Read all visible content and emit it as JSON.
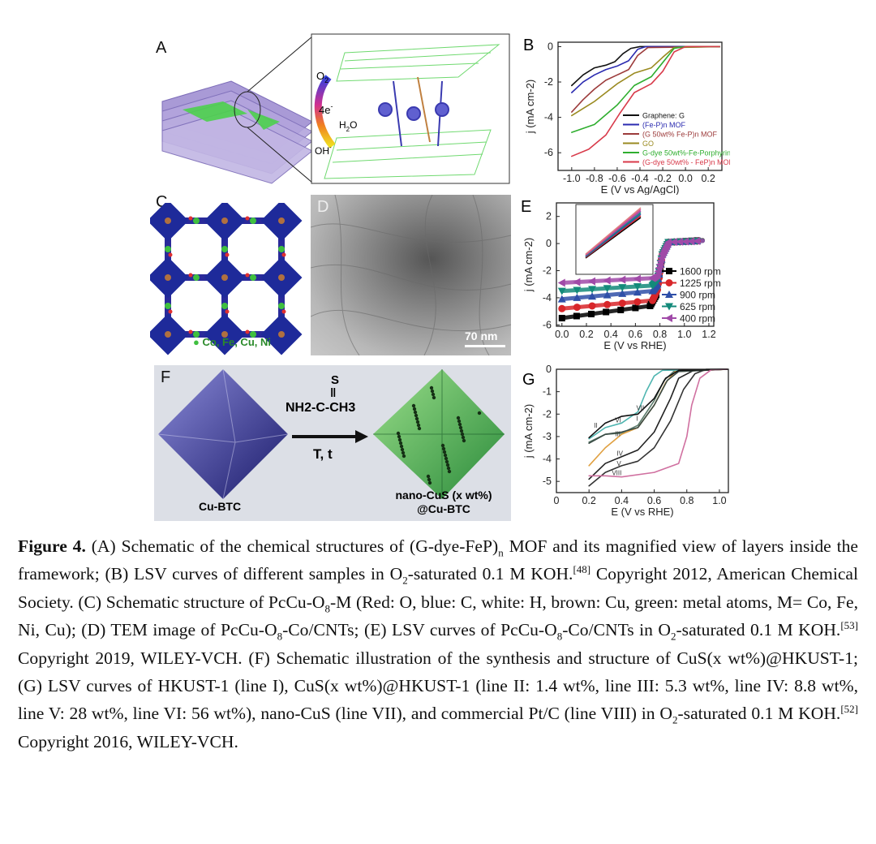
{
  "panels": {
    "A": {
      "label": "A",
      "o2": "O",
      "o2_sub": "2",
      "electrons": "4e",
      "electrons_sup": "-",
      "h2o": "H",
      "h2o_sub": "2",
      "h2o_end": "O",
      "oh": "OH",
      "oh_sup": "-"
    },
    "C": {
      "label": "C",
      "metals": "Co, Fe, Cu, Ni"
    },
    "D": {
      "label": "D",
      "scale_bar": "70 nm"
    },
    "F": {
      "label": "F",
      "reagent_s": "S",
      "reagent_formula": "NH2-C-CH3",
      "conditions": "T, t",
      "left_name": "Cu-BTC",
      "right_name_1": "nano-CuS (x wt%)",
      "right_name_2": "@Cu-BTC"
    },
    "colors": {
      "purple": "#9b88d0",
      "green": "#3fbf3f",
      "navy": "#2a2a7a"
    }
  },
  "chart_data": [
    {
      "id": "B",
      "label": "B",
      "type": "line",
      "xlabel": "E (V vs Ag/AgCl)",
      "ylabel": "j (mA cm-2)",
      "xlim": [
        -1.12,
        0.32
      ],
      "ylim": [
        -7,
        0.25
      ],
      "xticks": [
        -1.0,
        -0.8,
        -0.6,
        -0.4,
        -0.2,
        0.0,
        0.2
      ],
      "yticks": [
        0,
        -2,
        -4,
        -6
      ],
      "legend": "bottom-right",
      "series": [
        {
          "name": "Graphene: G",
          "color": "#111111",
          "points": [
            [
              -1,
              -2.2
            ],
            [
              -0.9,
              -1.6
            ],
            [
              -0.8,
              -1.2
            ],
            [
              -0.7,
              -1.05
            ],
            [
              -0.62,
              -0.85
            ],
            [
              -0.55,
              -0.4
            ],
            [
              -0.48,
              -0.1
            ],
            [
              -0.4,
              0
            ],
            [
              0.3,
              0
            ]
          ]
        },
        {
          "name": "(Fe-P)n MOF",
          "color": "#2b2bb0",
          "points": [
            [
              -1,
              -2.6
            ],
            [
              -0.9,
              -2.0
            ],
            [
              -0.8,
              -1.6
            ],
            [
              -0.7,
              -1.3
            ],
            [
              -0.6,
              -1.1
            ],
            [
              -0.5,
              -0.8
            ],
            [
              -0.42,
              -0.15
            ],
            [
              -0.35,
              0
            ],
            [
              0.3,
              0
            ]
          ]
        },
        {
          "name": "(G 50wt% Fe-P)n MOF",
          "color": "#9c3b3b",
          "points": [
            [
              -1,
              -3.7
            ],
            [
              -0.9,
              -3.0
            ],
            [
              -0.8,
              -2.4
            ],
            [
              -0.7,
              -1.9
            ],
            [
              -0.6,
              -1.6
            ],
            [
              -0.5,
              -1.3
            ],
            [
              -0.42,
              -0.5
            ],
            [
              -0.33,
              -0.05
            ],
            [
              0.3,
              0
            ]
          ]
        },
        {
          "name": "GO",
          "color": "#9a8a20",
          "points": [
            [
              -1,
              -3.9
            ],
            [
              -0.8,
              -3.1
            ],
            [
              -0.6,
              -2.1
            ],
            [
              -0.45,
              -1.5
            ],
            [
              -0.3,
              -1.2
            ],
            [
              -0.2,
              -0.6
            ],
            [
              -0.1,
              -0.05
            ],
            [
              0.3,
              0
            ]
          ]
        },
        {
          "name": "G-dye 50wt%-Fe-Porphyrin",
          "color": "#2fae2f",
          "points": [
            [
              -1,
              -4.85
            ],
            [
              -0.8,
              -4.4
            ],
            [
              -0.6,
              -3.3
            ],
            [
              -0.45,
              -2.2
            ],
            [
              -0.3,
              -1.7
            ],
            [
              -0.2,
              -0.9
            ],
            [
              -0.1,
              -0.1
            ],
            [
              0,
              0
            ],
            [
              0.3,
              0
            ]
          ]
        },
        {
          "name": "(G-dye 50wt% - FeP)n MOF",
          "color": "#d83a4a",
          "points": [
            [
              -1,
              -6.2
            ],
            [
              -0.85,
              -5.8
            ],
            [
              -0.7,
              -5.0
            ],
            [
              -0.58,
              -3.8
            ],
            [
              -0.45,
              -2.6
            ],
            [
              -0.3,
              -2.1
            ],
            [
              -0.2,
              -1.4
            ],
            [
              -0.1,
              -0.3
            ],
            [
              0,
              0
            ],
            [
              0.3,
              0
            ]
          ]
        }
      ]
    },
    {
      "id": "E",
      "label": "E",
      "type": "line",
      "xlabel": "E (V vs RHE)",
      "ylabel": "j (mA cm-2)",
      "xlim": [
        -0.045,
        1.24
      ],
      "ylim": [
        -6.1,
        3.0
      ],
      "xticks": [
        0.0,
        0.2,
        0.4,
        0.6,
        0.8,
        1.0,
        1.2
      ],
      "yticks": [
        2,
        0,
        -2,
        -4,
        -6
      ],
      "legend": "right",
      "series": [
        {
          "name": "1600 rpm",
          "color": "#000000",
          "marker": "square",
          "points": [
            [
              0,
              -5.5
            ],
            [
              0.72,
              -4.6
            ],
            [
              0.77,
              -3.8
            ],
            [
              0.82,
              -0.8
            ],
            [
              0.87,
              0.1
            ],
            [
              1.15,
              0.25
            ]
          ]
        },
        {
          "name": "1225 rpm",
          "color": "#d8262a",
          "marker": "circle",
          "points": [
            [
              0,
              -4.8
            ],
            [
              0.74,
              -4.2
            ],
            [
              0.78,
              -3.4
            ],
            [
              0.82,
              -0.8
            ],
            [
              0.87,
              0.1
            ],
            [
              1.15,
              0.2
            ]
          ]
        },
        {
          "name": "900 rpm",
          "color": "#2f4fa8",
          "marker": "triangle-up",
          "points": [
            [
              0,
              -4.1
            ],
            [
              0.74,
              -3.5
            ],
            [
              0.78,
              -3.0
            ],
            [
              0.82,
              -0.8
            ],
            [
              0.87,
              0.1
            ],
            [
              1.15,
              0.2
            ]
          ]
        },
        {
          "name": "625 rpm",
          "color": "#138a7a",
          "marker": "triangle-down",
          "points": [
            [
              0,
              -3.5
            ],
            [
              0.74,
              -3.1
            ],
            [
              0.78,
              -2.7
            ],
            [
              0.82,
              -0.8
            ],
            [
              0.87,
              0.1
            ],
            [
              1.15,
              0.2
            ]
          ]
        },
        {
          "name": "400 rpm",
          "color": "#a04aa8",
          "marker": "triangle-left",
          "points": [
            [
              0,
              -2.9
            ],
            [
              0.74,
              -2.55
            ],
            [
              0.78,
              -2.3
            ],
            [
              0.82,
              -0.8
            ],
            [
              0.87,
              0.1
            ],
            [
              1.15,
              0.2
            ]
          ]
        }
      ]
    },
    {
      "id": "G",
      "label": "G",
      "type": "line",
      "xlabel": "E (V vs RHE)",
      "ylabel": "j (mA cm-2)",
      "xlim": [
        0,
        1.055
      ],
      "ylim": [
        -5.5,
        0
      ],
      "xticks": [
        0,
        0.2,
        0.4,
        0.6,
        0.8,
        1.0
      ],
      "yticks": [
        0,
        -1,
        -2,
        -3,
        -4,
        -5
      ],
      "legend": "inline",
      "series": [
        {
          "name": "I",
          "color": "#4fb5b0",
          "label_at": [
            0.49,
            -2.3
          ],
          "points": [
            [
              0.2,
              -3.1
            ],
            [
              0.3,
              -2.6
            ],
            [
              0.4,
              -2.4
            ],
            [
              0.5,
              -1.9
            ],
            [
              0.55,
              -1.0
            ],
            [
              0.6,
              -0.3
            ],
            [
              0.65,
              -0.05
            ],
            [
              1.05,
              0
            ]
          ]
        },
        {
          "name": "II",
          "color": "#5a7a6a",
          "label_at": [
            0.23,
            -2.6
          ],
          "points": [
            [
              0.2,
              -3.25
            ],
            [
              0.3,
              -2.9
            ],
            [
              0.4,
              -2.85
            ],
            [
              0.5,
              -2.5
            ],
            [
              0.6,
              -1.4
            ],
            [
              0.66,
              -0.5
            ],
            [
              0.72,
              -0.1
            ],
            [
              1.05,
              0
            ]
          ]
        },
        {
          "name": "III",
          "color": "#e0a040",
          "label_at": [
            0.36,
            -2.98
          ],
          "points": [
            [
              0.2,
              -4.3
            ],
            [
              0.3,
              -3.5
            ],
            [
              0.4,
              -2.9
            ],
            [
              0.5,
              -2.6
            ],
            [
              0.6,
              -1.6
            ],
            [
              0.67,
              -0.6
            ],
            [
              0.73,
              -0.1
            ],
            [
              1.05,
              0
            ]
          ]
        },
        {
          "name": "IV",
          "color": "#222222",
          "label_at": [
            0.37,
            -3.85
          ],
          "points": [
            [
              0.2,
              -4.9
            ],
            [
              0.3,
              -4.2
            ],
            [
              0.4,
              -3.9
            ],
            [
              0.5,
              -3.6
            ],
            [
              0.6,
              -2.8
            ],
            [
              0.7,
              -1.3
            ],
            [
              0.75,
              -0.4
            ],
            [
              0.85,
              -0.02
            ],
            [
              1.05,
              0
            ]
          ]
        },
        {
          "name": "V",
          "color": "#333333",
          "label_at": [
            0.37,
            -4.3
          ],
          "points": [
            [
              0.2,
              -5.2
            ],
            [
              0.3,
              -4.6
            ],
            [
              0.4,
              -4.3
            ],
            [
              0.5,
              -4.1
            ],
            [
              0.6,
              -3.5
            ],
            [
              0.7,
              -2.3
            ],
            [
              0.78,
              -0.9
            ],
            [
              0.85,
              -0.2
            ],
            [
              0.92,
              0
            ],
            [
              1.05,
              0
            ]
          ]
        },
        {
          "name": "VI",
          "color": "#3a4a44",
          "label_at": [
            0.36,
            -2.7
          ],
          "points": [
            [
              0.2,
              -3.3
            ],
            [
              0.3,
              -2.9
            ],
            [
              0.4,
              -2.8
            ],
            [
              0.5,
              -2.6
            ],
            [
              0.6,
              -1.6
            ],
            [
              0.68,
              -0.5
            ],
            [
              0.75,
              -0.1
            ],
            [
              1.05,
              0
            ]
          ]
        },
        {
          "name": "VII",
          "color": "#111111",
          "label_at": [
            0.49,
            -2.15
          ],
          "points": [
            [
              0.2,
              -3.05
            ],
            [
              0.3,
              -2.4
            ],
            [
              0.4,
              -2.1
            ],
            [
              0.5,
              -2.0
            ],
            [
              0.6,
              -1.3
            ],
            [
              0.67,
              -0.4
            ],
            [
              0.75,
              -0.05
            ],
            [
              1.05,
              0
            ]
          ]
        },
        {
          "name": "VIII",
          "color": "#d070a0",
          "label_at": [
            0.34,
            -4.72
          ],
          "points": [
            [
              0.2,
              -4.75
            ],
            [
              0.3,
              -4.75
            ],
            [
              0.4,
              -4.8
            ],
            [
              0.6,
              -4.6
            ],
            [
              0.75,
              -4.2
            ],
            [
              0.8,
              -3.0
            ],
            [
              0.83,
              -1.6
            ],
            [
              0.88,
              -0.4
            ],
            [
              0.95,
              -0.02
            ],
            [
              1.05,
              0
            ]
          ]
        }
      ]
    }
  ],
  "caption": [
    {
      "t": "Figure 4.",
      "s": "b"
    },
    {
      "t": " (A) Schematic of the chemical structures of (G-dye-FeP)"
    },
    {
      "t": "n",
      "s": "sub"
    },
    {
      "t": " MOF and its magnified view of layers inside the framework; (B) LSV curves of different samples in O"
    },
    {
      "t": "2",
      "s": "sub"
    },
    {
      "t": "-saturated 0.1 M KOH."
    },
    {
      "t": "[48]",
      "s": "sup"
    },
    {
      "t": " Copyright 2012, American Chemical Society. (C) Schematic structure of PcCu-O"
    },
    {
      "t": "8",
      "s": "sub"
    },
    {
      "t": "-M (Red: O, blue: C, white: H, brown: Cu, green: metal atoms, M= Co, Fe, Ni, Cu); (D) TEM image of PcCu-O"
    },
    {
      "t": "8",
      "s": "sub"
    },
    {
      "t": "-Co/CNTs; (E) LSV curves of PcCu-O"
    },
    {
      "t": "8",
      "s": "sub"
    },
    {
      "t": "-Co/CNTs in O"
    },
    {
      "t": "2",
      "s": "sub"
    },
    {
      "t": "-saturated 0.1 M KOH."
    },
    {
      "t": "[53]",
      "s": "sup"
    },
    {
      "t": " Copyright 2019, WILEY-VCH. (F) Schematic illustration of the synthesis and structure of CuS(x wt%)@HKUST-1; (G) LSV curves of HKUST-1 (line I), CuS(x wt%)@HKUST-1 (line II: 1.4 wt%, line III: 5.3 wt%, line IV: 8.8 wt%, line V: 28 wt%, line VI: 56 wt%), nano-CuS (line VII), and commercial Pt/C (line VIII) in O"
    },
    {
      "t": "2",
      "s": "sub"
    },
    {
      "t": "-saturated 0.1 M KOH."
    },
    {
      "t": "[52]",
      "s": "sup"
    },
    {
      "t": " Copyright 2016, WILEY-VCH."
    }
  ]
}
